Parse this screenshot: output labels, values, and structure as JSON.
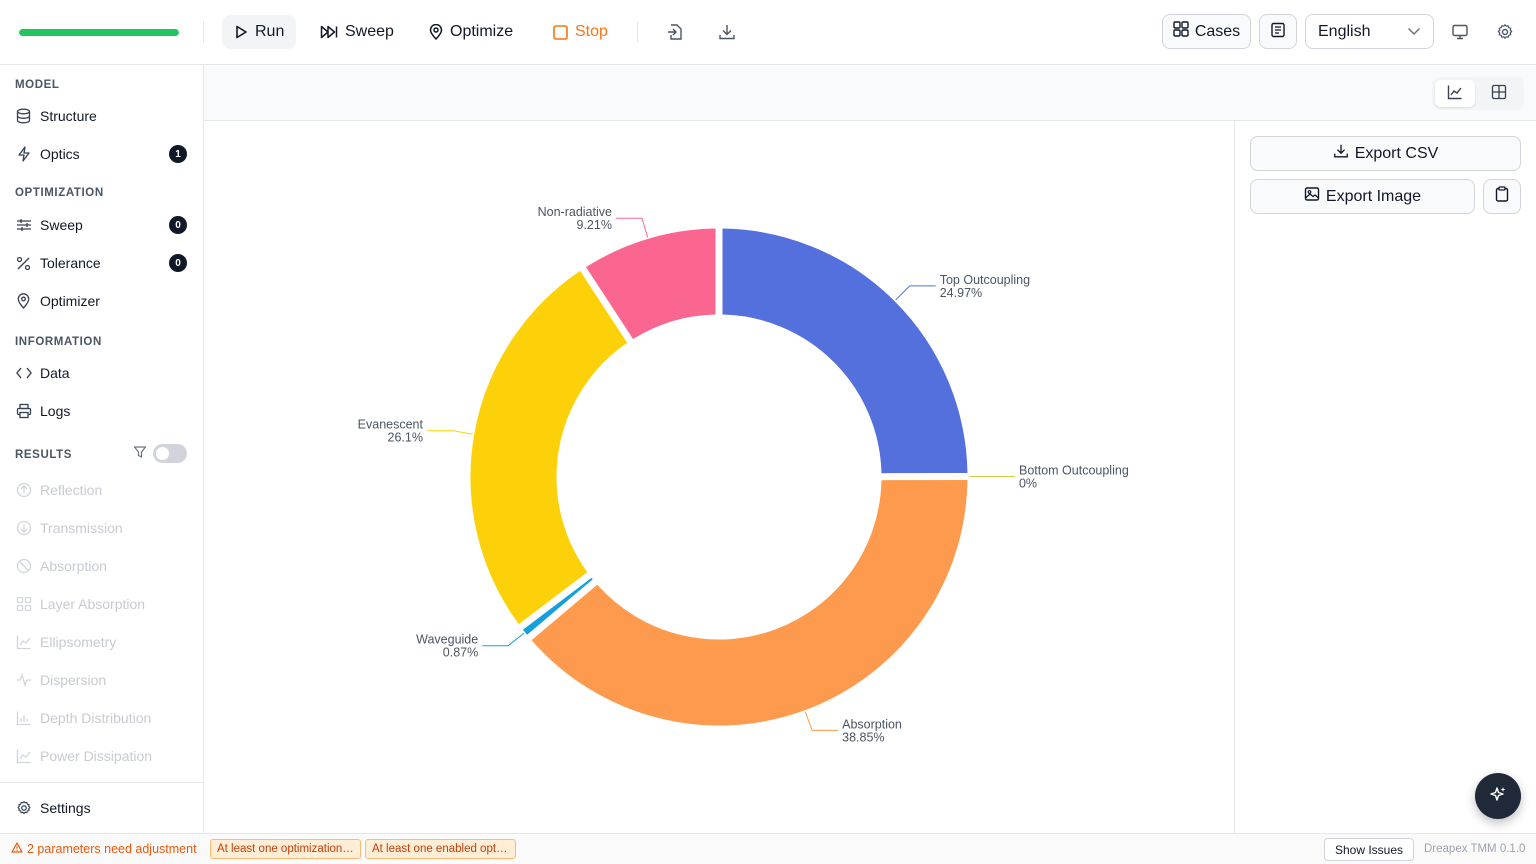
{
  "toolbar": {
    "progress_fraction": 1.0,
    "progress_color": "#22c55e",
    "run_label": "Run",
    "sweep_label": "Sweep",
    "optimize_label": "Optimize",
    "stop_label": "Stop",
    "cases_label": "Cases",
    "language": "English"
  },
  "sidebar": {
    "model_title": "MODEL",
    "structure": "Structure",
    "optics": "Optics",
    "optics_badge": "1",
    "optimization_title": "OPTIMIZATION",
    "sweep": "Sweep",
    "sweep_badge": "0",
    "tolerance": "Tolerance",
    "tolerance_badge": "0",
    "optimizer": "Optimizer",
    "information_title": "INFORMATION",
    "data": "Data",
    "logs": "Logs",
    "results_title": "RESULTS",
    "results_items": [
      "Reflection",
      "Transmission",
      "Absorption",
      "Layer Absorption",
      "Ellipsometry",
      "Dispersion",
      "Depth Distribution",
      "Power Dissipation"
    ],
    "settings": "Settings"
  },
  "panel": {
    "export_csv": "Export CSV",
    "export_image": "Export Image"
  },
  "status": {
    "warning": "2 parameters need adjustment",
    "chip1": "At least one optimization is required",
    "chip2": "At least one enabled optimization target",
    "show_issues": "Show Issues",
    "version": "Dreapex TMM 0.1.0"
  },
  "chart_data": {
    "type": "pie",
    "donut": true,
    "slices": [
      {
        "name": "Top Outcoupling",
        "label": "24.97%",
        "value": 24.97,
        "color": "#5470dd"
      },
      {
        "name": "Bottom Outcoupling",
        "label": "0%",
        "value": 0,
        "color": "#c8d44a"
      },
      {
        "name": "Absorption",
        "label": "38.85%",
        "value": 38.85,
        "color": "#fd9a4e"
      },
      {
        "name": "Waveguide",
        "label": "0.87%",
        "value": 0.87,
        "color": "#14a0dc"
      },
      {
        "name": "Evanescent",
        "label": "26.1%",
        "value": 26.1,
        "color": "#fdd109"
      },
      {
        "name": "Non-radiative",
        "label": "9.21%",
        "value": 9.21,
        "color": "#fb6690"
      }
    ]
  }
}
